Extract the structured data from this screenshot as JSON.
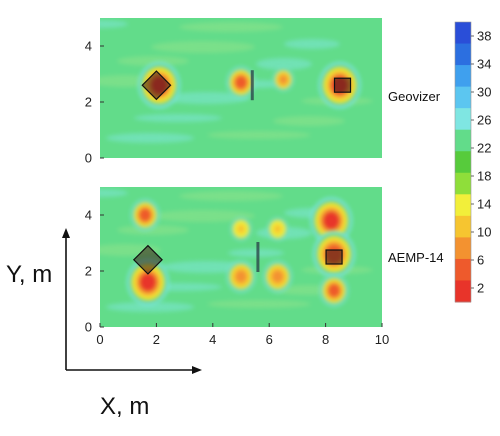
{
  "chart_data": {
    "type": "heatmap",
    "x_ticks": [
      "0",
      "2",
      "4",
      "6",
      "8",
      "10"
    ],
    "y_ticks": [
      "0",
      "2",
      "4"
    ],
    "xlim": [
      0,
      10
    ],
    "ylim": [
      0,
      5
    ],
    "xlabel": "X, m",
    "ylabel": "Y, m",
    "colorbar": {
      "ticks": [
        "38",
        "34",
        "30",
        "26",
        "22",
        "18",
        "14",
        "10",
        "6",
        "2"
      ],
      "range": [
        0,
        40
      ],
      "colors": [
        "#e8342a",
        "#ee5a2c",
        "#f39230",
        "#f6c530",
        "#f2ef3a",
        "#8fde3a",
        "#57cb3c",
        "#62dc8a",
        "#7fe6e2",
        "#5cc6f0",
        "#3fa0ee",
        "#2c6fe0",
        "#2a4ed8"
      ]
    },
    "panels": [
      {
        "label": "Geovizer",
        "background_value": 22,
        "anomalies": [
          {
            "x": 2.1,
            "y": 2.6,
            "value": 3
          },
          {
            "x": 5.0,
            "y": 2.7,
            "value": 5
          },
          {
            "x": 6.5,
            "y": 2.8,
            "value": 9
          },
          {
            "x": 8.5,
            "y": 2.6,
            "value": 3
          }
        ],
        "targets": [
          {
            "shape": "diamond",
            "x": 2.0,
            "y": 2.6
          },
          {
            "shape": "bar",
            "x": 5.4,
            "y": 2.6
          },
          {
            "shape": "square",
            "x": 8.6,
            "y": 2.6
          }
        ]
      },
      {
        "label": "AEMP-14",
        "background_value": 22,
        "anomalies": [
          {
            "x": 1.6,
            "y": 4.0,
            "value": 5
          },
          {
            "x": 1.7,
            "y": 1.6,
            "value": 3
          },
          {
            "x": 5.0,
            "y": 1.8,
            "value": 8
          },
          {
            "x": 6.3,
            "y": 1.8,
            "value": 8
          },
          {
            "x": 5.0,
            "y": 3.5,
            "value": 12
          },
          {
            "x": 6.3,
            "y": 3.5,
            "value": 12
          },
          {
            "x": 8.2,
            "y": 3.8,
            "value": 3
          },
          {
            "x": 8.3,
            "y": 2.6,
            "value": 4
          },
          {
            "x": 8.3,
            "y": 1.3,
            "value": 6
          }
        ],
        "targets": [
          {
            "shape": "diamond",
            "x": 1.7,
            "y": 2.4
          },
          {
            "shape": "bar",
            "x": 5.6,
            "y": 2.5
          },
          {
            "shape": "square",
            "x": 8.3,
            "y": 2.5
          }
        ]
      }
    ]
  }
}
